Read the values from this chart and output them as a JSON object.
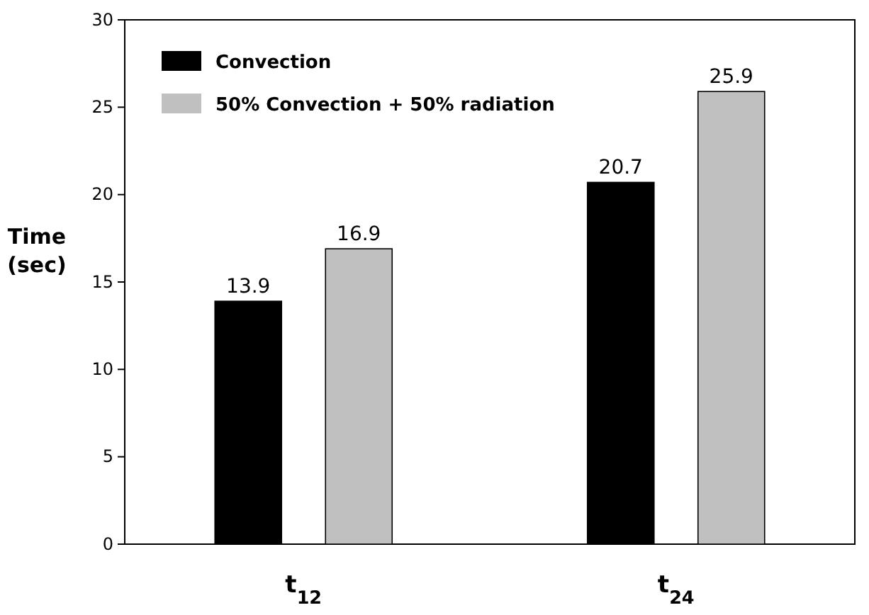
{
  "chart_data": {
    "type": "bar",
    "categories": [
      "t$_{12}$",
      "t$_{24}$"
    ],
    "ylabel": "Time (sec)",
    "series": [
      {
        "name": "Convection",
        "color": "#000000",
        "values": [
          13.9,
          20.7
        ]
      },
      {
        "name": "50% Convection + 50% radiation",
        "color": "#c0c0c0",
        "values": [
          16.9,
          25.9
        ]
      }
    ],
    "ylim": [
      0,
      30
    ],
    "yticks": [
      0,
      5,
      10,
      15,
      20,
      25,
      30
    ],
    "data_labels": true,
    "legend": "top left",
    "grid": false
  }
}
